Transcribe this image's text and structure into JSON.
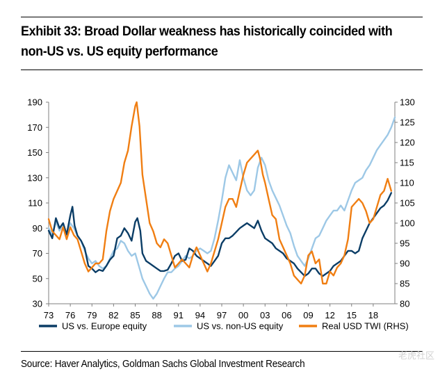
{
  "title": "Exhibit 33: Broad Dollar weakness has historically coincided with non-US vs. US equity performance",
  "source": "Source: Haver Analytics, Goldman Sachs Global Investment Research",
  "watermark": "老虎社区",
  "chart_data": {
    "type": "line",
    "title": "Exhibit 33: Broad Dollar weakness has historically coincided with non-US vs. US equity performance",
    "xlabel": "",
    "ylabel": "",
    "y2label": "",
    "xlim": [
      1973,
      2021
    ],
    "ylim": [
      30,
      190
    ],
    "y2lim": [
      80,
      130
    ],
    "xticks": [
      1973,
      1976,
      1979,
      1982,
      1985,
      1988,
      1991,
      1994,
      1997,
      2000,
      2003,
      2006,
      2009,
      2012,
      2015,
      2018
    ],
    "xtick_labels": [
      "73",
      "76",
      "79",
      "82",
      "85",
      "88",
      "91",
      "94",
      "97",
      "00",
      "03",
      "06",
      "09",
      "12",
      "15",
      "18"
    ],
    "yticks": [
      30,
      50,
      70,
      90,
      110,
      130,
      150,
      170,
      190
    ],
    "y2ticks": [
      80,
      85,
      90,
      95,
      100,
      105,
      110,
      115,
      120,
      125,
      130
    ],
    "legend_position": "bottom",
    "series": [
      {
        "name": "US vs. Europe equity",
        "axis": "left",
        "color": "#0b3d66",
        "x": [
          1973,
          1973.5,
          1974,
          1974.5,
          1975,
          1975.5,
          1976,
          1976.3,
          1976.6,
          1977,
          1977.5,
          1978,
          1978.5,
          1979,
          1979.5,
          1980,
          1980.5,
          1981,
          1981.5,
          1982,
          1982.5,
          1983,
          1983.5,
          1984,
          1984.5,
          1985,
          1985.3,
          1985.7,
          1986,
          1986.5,
          1987,
          1987.5,
          1988,
          1988.5,
          1989,
          1989.5,
          1990,
          1990.5,
          1991,
          1991.5,
          1992,
          1992.5,
          1993,
          1993.5,
          1994,
          1994.5,
          1995,
          1995.5,
          1996,
          1996.5,
          1997,
          1997.5,
          1998,
          1998.5,
          1999,
          1999.5,
          2000,
          2000.5,
          2001,
          2001.5,
          2002,
          2002.5,
          2003,
          2003.5,
          2004,
          2004.5,
          2005,
          2005.5,
          2006,
          2006.5,
          2007,
          2007.5,
          2008,
          2008.5,
          2009,
          2009.5,
          2010,
          2010.5,
          2011,
          2011.5,
          2012,
          2012.5,
          2013,
          2013.5,
          2014,
          2014.5,
          2015,
          2015.5,
          2016,
          2016.5,
          2017,
          2017.5,
          2018,
          2018.5,
          2019,
          2019.5,
          2020,
          2020.5
        ],
        "values": [
          88,
          82,
          98,
          90,
          94,
          85,
          100,
          107,
          92,
          84,
          80,
          74,
          60,
          58,
          55,
          57,
          56,
          60,
          65,
          68,
          82,
          84,
          90,
          86,
          80,
          95,
          98,
          88,
          70,
          64,
          62,
          60,
          58,
          56,
          56,
          57,
          62,
          68,
          70,
          64,
          65,
          74,
          72,
          68,
          66,
          64,
          62,
          60,
          64,
          68,
          78,
          82,
          82,
          84,
          87,
          90,
          92,
          94,
          92,
          90,
          96,
          88,
          82,
          80,
          78,
          74,
          72,
          70,
          66,
          64,
          62,
          58,
          55,
          52,
          54,
          58,
          58,
          54,
          52,
          54,
          56,
          60,
          62,
          64,
          68,
          72,
          72,
          70,
          72,
          82,
          88,
          94,
          98,
          102,
          106,
          108,
          112,
          118
        ]
      },
      {
        "name": "US vs. non-US equity",
        "axis": "left",
        "color": "#9dc8e6",
        "x": [
          1973,
          1973.5,
          1974,
          1974.5,
          1975,
          1975.5,
          1976,
          1976.5,
          1977,
          1977.5,
          1978,
          1978.5,
          1979,
          1979.5,
          1980,
          1980.5,
          1981,
          1981.5,
          1982,
          1982.5,
          1983,
          1983.5,
          1984,
          1984.5,
          1985,
          1985.5,
          1986,
          1986.5,
          1987,
          1987.5,
          1988,
          1988.5,
          1989,
          1989.5,
          1990,
          1990.5,
          1991,
          1991.5,
          1992,
          1992.5,
          1993,
          1993.5,
          1994,
          1994.5,
          1995,
          1995.5,
          1996,
          1996.5,
          1997,
          1997.5,
          1998,
          1998.5,
          1999,
          1999.5,
          2000,
          2000.5,
          2001,
          2001.5,
          2002,
          2002.5,
          2003,
          2003.5,
          2004,
          2004.5,
          2005,
          2005.5,
          2006,
          2006.5,
          2007,
          2007.5,
          2008,
          2008.5,
          2009,
          2009.5,
          2010,
          2010.5,
          2011,
          2011.5,
          2012,
          2012.5,
          2013,
          2013.5,
          2014,
          2014.5,
          2015,
          2015.5,
          2016,
          2016.5,
          2017,
          2017.5,
          2018,
          2018.5,
          2019,
          2019.5,
          2020,
          2020.5,
          2021
        ],
        "values": [
          90,
          85,
          95,
          88,
          92,
          84,
          94,
          90,
          84,
          80,
          72,
          66,
          62,
          64,
          60,
          58,
          60,
          66,
          72,
          74,
          80,
          78,
          72,
          68,
          70,
          60,
          50,
          44,
          38,
          34,
          38,
          44,
          50,
          55,
          55,
          58,
          60,
          64,
          68,
          66,
          68,
          72,
          74,
          72,
          70,
          72,
          82,
          96,
          112,
          130,
          140,
          134,
          128,
          144,
          130,
          120,
          116,
          120,
          138,
          146,
          140,
          128,
          120,
          114,
          108,
          100,
          92,
          86,
          76,
          68,
          64,
          60,
          66,
          74,
          82,
          84,
          90,
          96,
          100,
          104,
          104,
          108,
          104,
          112,
          120,
          126,
          128,
          130,
          136,
          140,
          146,
          152,
          156,
          160,
          164,
          170,
          178
        ]
      },
      {
        "name": "Real USD TWI (RHS)",
        "axis": "right",
        "color": "#f07e12",
        "x": [
          1973,
          1973.5,
          1974,
          1974.5,
          1975,
          1975.5,
          1976,
          1976.5,
          1977,
          1977.5,
          1978,
          1978.5,
          1979,
          1979.5,
          1980,
          1980.5,
          1981,
          1981.5,
          1982,
          1982.5,
          1983,
          1983.5,
          1984,
          1984.5,
          1985,
          1985.2,
          1985.6,
          1986,
          1986.5,
          1987,
          1987.5,
          1988,
          1988.5,
          1989,
          1989.5,
          1990,
          1990.5,
          1991,
          1991.5,
          1992,
          1992.5,
          1993,
          1993.5,
          1994,
          1994.5,
          1995,
          1995.5,
          1996,
          1996.5,
          1997,
          1997.5,
          1998,
          1998.5,
          1999,
          1999.5,
          2000,
          2000.5,
          2001,
          2001.5,
          2002,
          2002.3,
          2002.7,
          2003,
          2003.5,
          2004,
          2004.5,
          2005,
          2005.5,
          2006,
          2006.5,
          2007,
          2007.5,
          2008,
          2008.5,
          2009,
          2009.5,
          2010,
          2010.5,
          2011,
          2011.5,
          2012,
          2012.5,
          2013,
          2013.5,
          2014,
          2014.5,
          2015,
          2015.5,
          2016,
          2016.5,
          2017,
          2017.5,
          2018,
          2018.5,
          2019,
          2019.5,
          2020,
          2020.5
        ],
        "values": [
          101,
          98,
          97,
          96,
          99,
          96,
          99,
          97,
          96,
          93,
          90,
          88,
          89,
          90,
          90,
          91,
          98,
          103,
          106,
          108,
          110,
          115,
          118,
          124,
          129,
          130,
          124,
          112,
          106,
          100,
          98,
          95,
          94,
          96,
          95,
          92,
          89,
          90,
          91,
          90,
          89,
          92,
          94,
          92,
          90,
          88,
          90,
          93,
          96,
          100,
          104,
          106,
          106,
          104,
          108,
          112,
          115,
          116,
          117,
          118,
          116,
          112,
          110,
          106,
          102,
          101,
          96,
          94,
          92,
          90,
          87,
          86,
          85,
          87,
          92,
          93,
          90,
          91,
          85,
          85,
          88,
          87,
          89,
          90,
          92,
          96,
          104,
          105,
          106,
          105,
          103,
          100,
          101,
          104,
          107,
          108,
          111,
          108
        ]
      }
    ]
  }
}
